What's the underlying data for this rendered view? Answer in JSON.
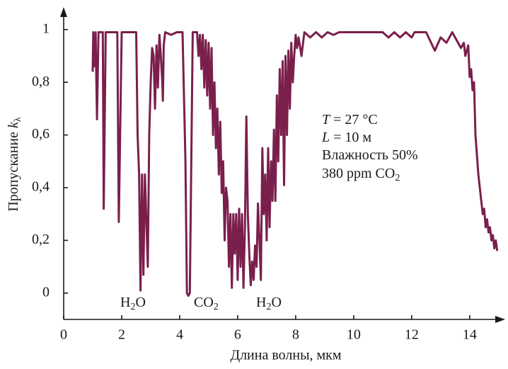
{
  "chart_data": {
    "type": "line",
    "x_label": "Длина волны, мкм",
    "y_label": [
      {
        "text": "Пропускание "
      },
      {
        "text": "k",
        "italic": true
      },
      {
        "text": "λ",
        "sub": true
      }
    ],
    "xlim": [
      0,
      15.2
    ],
    "ylim": [
      -0.1,
      1.08
    ],
    "xticks": [
      0,
      2,
      4,
      6,
      8,
      10,
      12,
      14
    ],
    "yticks": [
      0,
      {
        "value": 0.2,
        "label": "0,2"
      },
      {
        "value": 0.4,
        "label": "0,4"
      },
      {
        "value": 0.6,
        "label": "0,6"
      },
      {
        "value": 0.8,
        "label": "0,8"
      },
      1
    ],
    "annotations": [
      [
        {
          "text": "H"
        },
        {
          "text": "2",
          "sub": true
        },
        {
          "text": "O"
        }
      ],
      [
        {
          "text": "CO"
        },
        {
          "text": "2",
          "sub": true
        }
      ],
      [
        {
          "text": "H"
        },
        {
          "text": "2",
          "sub": true
        },
        {
          "text": "O"
        }
      ],
      [
        {
          "text": "T",
          "italic": true
        },
        {
          "text": " = 27 °C"
        }
      ],
      [
        {
          "text": "L",
          "italic": true
        },
        {
          "text": " = 10 м"
        }
      ],
      [
        {
          "text": "Влажность 50%"
        }
      ],
      [
        {
          "text": "380 ppm CO"
        },
        {
          "text": "2",
          "sub": true
        }
      ]
    ],
    "series": [
      {
        "color": "#7a1f4c",
        "x": [
          1.0,
          1.02,
          1.05,
          1.1,
          1.15,
          1.2,
          1.35,
          1.38,
          1.45,
          1.6,
          1.7,
          1.85,
          1.9,
          2.0,
          2.3,
          2.4,
          2.5,
          2.55,
          2.6,
          2.65,
          2.7,
          2.75,
          2.8,
          2.9,
          2.95,
          3.0,
          3.05,
          3.1,
          3.15,
          3.2,
          3.25,
          3.3,
          3.35,
          3.4,
          3.42,
          3.45,
          3.5,
          3.7,
          3.9,
          4.1,
          4.2,
          4.25,
          4.3,
          4.35,
          4.45,
          4.6,
          4.65,
          4.7,
          4.75,
          4.8,
          4.85,
          4.9,
          4.95,
          5.0,
          5.05,
          5.1,
          5.15,
          5.2,
          5.25,
          5.3,
          5.35,
          5.4,
          5.45,
          5.5,
          5.55,
          5.6,
          5.65,
          5.7,
          5.75,
          5.8,
          5.85,
          5.9,
          5.95,
          6.0,
          6.05,
          6.1,
          6.15,
          6.2,
          6.25,
          6.3,
          6.35,
          6.4,
          6.45,
          6.5,
          6.55,
          6.6,
          6.65,
          6.7,
          6.75,
          6.8,
          6.85,
          6.9,
          6.95,
          7.0,
          7.05,
          7.1,
          7.15,
          7.2,
          7.25,
          7.3,
          7.35,
          7.4,
          7.45,
          7.5,
          7.55,
          7.6,
          7.65,
          7.7,
          7.75,
          7.8,
          7.85,
          7.9,
          7.95,
          8.0,
          8.05,
          8.1,
          8.2,
          8.3,
          8.5,
          8.7,
          8.9,
          9.1,
          9.3,
          9.5,
          10.0,
          10.5,
          11.0,
          11.2,
          11.4,
          11.6,
          11.8,
          12.0,
          12.1,
          12.5,
          12.8,
          13.0,
          13.2,
          13.4,
          13.6,
          13.7,
          13.8,
          13.85,
          13.95,
          14.0,
          14.05,
          14.1,
          14.15,
          14.2,
          14.3,
          14.4,
          14.45,
          14.5,
          14.55,
          14.6,
          14.65,
          14.7,
          14.75,
          14.8,
          14.85,
          14.9,
          14.95
        ],
        "values": [
          0.84,
          0.99,
          0.86,
          0.99,
          0.66,
          0.99,
          0.99,
          0.32,
          0.99,
          0.99,
          0.99,
          0.99,
          0.27,
          0.99,
          0.99,
          0.99,
          0.99,
          0.6,
          0.45,
          0.01,
          0.45,
          0.07,
          0.45,
          0.1,
          0.6,
          0.8,
          0.93,
          0.9,
          0.7,
          0.94,
          0.78,
          0.98,
          0.9,
          0.8,
          0.73,
          0.94,
          0.99,
          0.98,
          0.99,
          0.99,
          0.5,
          0.0,
          -0.01,
          0.0,
          0.99,
          0.99,
          0.9,
          0.98,
          0.85,
          0.98,
          0.78,
          0.96,
          0.75,
          0.95,
          0.7,
          0.93,
          0.6,
          0.8,
          0.55,
          0.7,
          0.45,
          0.65,
          0.38,
          0.5,
          0.2,
          0.4,
          0.35,
          0.1,
          0.3,
          0.02,
          0.3,
          0.15,
          0.3,
          0.05,
          0.32,
          0.1,
          0.3,
          0.02,
          0.25,
          0.67,
          0.3,
          0.15,
          0.03,
          0.12,
          0.05,
          0.18,
          0.1,
          0.34,
          0.2,
          0.05,
          0.55,
          0.3,
          0.45,
          0.2,
          0.55,
          0.25,
          0.5,
          0.35,
          0.62,
          0.35,
          0.75,
          0.5,
          0.85,
          0.6,
          0.88,
          0.41,
          0.9,
          0.6,
          0.92,
          0.7,
          0.95,
          0.8,
          0.9,
          0.98,
          0.93,
          0.97,
          0.9,
          0.99,
          0.97,
          0.99,
          0.97,
          0.99,
          0.98,
          0.99,
          0.99,
          0.99,
          0.99,
          0.97,
          0.99,
          0.97,
          0.99,
          0.97,
          0.99,
          0.99,
          0.92,
          0.97,
          0.95,
          0.99,
          0.95,
          0.93,
          0.95,
          0.9,
          0.94,
          0.82,
          0.85,
          0.77,
          0.8,
          0.6,
          0.45,
          0.35,
          0.3,
          0.32,
          0.25,
          0.28,
          0.23,
          0.25,
          0.2,
          0.22,
          0.17,
          0.2,
          0.16
        ]
      }
    ]
  }
}
